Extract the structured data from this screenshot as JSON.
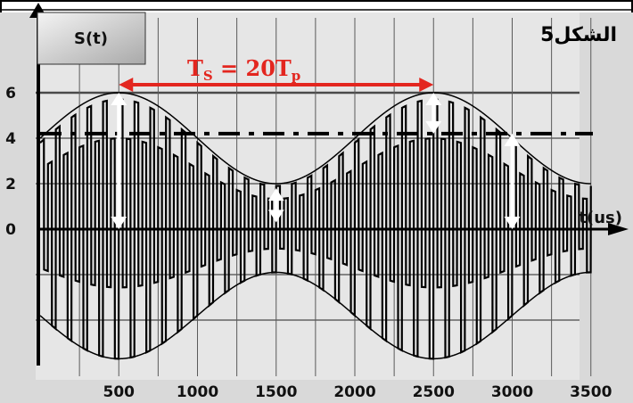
{
  "figure_label": "الشكل5",
  "chart_data": {
    "type": "line",
    "title": "S(t)",
    "xlabel": "t(us)",
    "ylabel": "",
    "x_ticks": [
      500,
      1000,
      1500,
      2000,
      2500,
      3000,
      3500
    ],
    "y_ticks": [
      0,
      2,
      4,
      6
    ],
    "xlim": [
      0,
      3600
    ],
    "ylim": [
      -4.5,
      8
    ],
    "grid": true,
    "series": [
      {
        "kind": "modulated_signal",
        "offset": 0,
        "envelope_mean": 4,
        "envelope_amplitude": 2,
        "envelope_period_us": 2000,
        "envelope_first_max_us": 500,
        "carrier_period_us": 100,
        "color": "#000000"
      }
    ],
    "reference_line": {
      "y": 4.2,
      "style": "dash-dot",
      "color": "#000000"
    },
    "annotation": {
      "text_main": "T",
      "text_sub": "S",
      "text_mid": " = 20T",
      "text_sub2": "p",
      "from_x": 500,
      "to_x": 2500,
      "y": 6.3,
      "color": "#e3261f"
    },
    "measure_arrows": [
      {
        "x": 500,
        "from_y": 0,
        "to_y": 6
      },
      {
        "x": 1500,
        "from_y": 0.3,
        "to_y": 1.8
      },
      {
        "x": 2500,
        "from_y": 4.2,
        "to_y": 6
      },
      {
        "x": 3000,
        "from_y": 0,
        "to_y": 4.2
      }
    ],
    "arrow_color": "#ffffff"
  }
}
